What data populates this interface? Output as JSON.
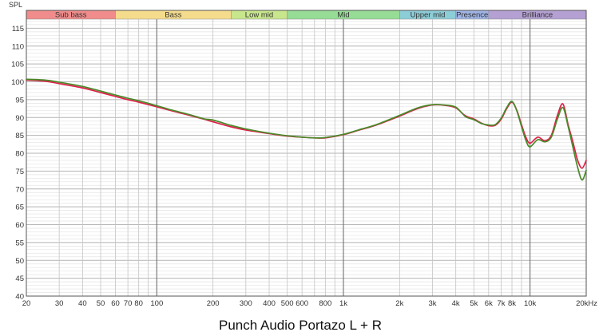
{
  "chart_data": {
    "type": "line",
    "title": "Punch Audio Portazo L + R",
    "ylabel": "SPL",
    "xscale": "log",
    "xlim": [
      20,
      20000
    ],
    "ylim": [
      40,
      120
    ],
    "grid": true,
    "x_tick_labels": [
      {
        "value": 20,
        "label": "20"
      },
      {
        "value": 30,
        "label": "30"
      },
      {
        "value": 40,
        "label": "40"
      },
      {
        "value": 50,
        "label": "50"
      },
      {
        "value": 60,
        "label": "60"
      },
      {
        "value": 70,
        "label": "70"
      },
      {
        "value": 80,
        "label": "80"
      },
      {
        "value": 100,
        "label": "100"
      },
      {
        "value": 200,
        "label": "200"
      },
      {
        "value": 300,
        "label": "300"
      },
      {
        "value": 400,
        "label": "400"
      },
      {
        "value": 500,
        "label": "500"
      },
      {
        "value": 600,
        "label": "600"
      },
      {
        "value": 800,
        "label": "800"
      },
      {
        "value": 1000,
        "label": "1k"
      },
      {
        "value": 2000,
        "label": "2k"
      },
      {
        "value": 3000,
        "label": "3k"
      },
      {
        "value": 4000,
        "label": "4k"
      },
      {
        "value": 5000,
        "label": "5k"
      },
      {
        "value": 6000,
        "label": "6k"
      },
      {
        "value": 7000,
        "label": "7k"
      },
      {
        "value": 8000,
        "label": "8k"
      },
      {
        "value": 10000,
        "label": "10k"
      },
      {
        "value": 20000,
        "label": "20kHz"
      }
    ],
    "y_ticks": [
      40,
      45,
      50,
      55,
      60,
      65,
      70,
      75,
      80,
      85,
      90,
      95,
      100,
      105,
      110,
      115
    ],
    "bands": [
      {
        "label": "Sub bass",
        "from": 20,
        "to": 60,
        "color": "#f08c8c"
      },
      {
        "label": "Bass",
        "from": 60,
        "to": 250,
        "color": "#f5dc8c"
      },
      {
        "label": "Low mid",
        "from": 250,
        "to": 500,
        "color": "#c8e68c"
      },
      {
        "label": "Mid",
        "from": 500,
        "to": 2000,
        "color": "#96dc96"
      },
      {
        "label": "Upper mid",
        "from": 2000,
        "to": 4000,
        "color": "#8ccdd7"
      },
      {
        "label": "Presence",
        "from": 4000,
        "to": 6000,
        "color": "#a0b4e6"
      },
      {
        "label": "Brilliance",
        "from": 6000,
        "to": 20000,
        "color": "#b4a0d2"
      }
    ],
    "series": [
      {
        "color": "#e0204a",
        "x": [
          20,
          25,
          30,
          40,
          50,
          60,
          70,
          80,
          100,
          120,
          150,
          180,
          200,
          250,
          300,
          400,
          500,
          600,
          700,
          800,
          1000,
          1200,
          1500,
          2000,
          2500,
          3000,
          3500,
          4000,
          4500,
          5000,
          5500,
          6000,
          6500,
          7000,
          7500,
          8000,
          8500,
          9000,
          9500,
          10000,
          11000,
          12000,
          13000,
          14000,
          15000,
          16000,
          17000,
          18000,
          19000,
          20000
        ],
        "y": [
          100.5,
          100.2,
          99.5,
          98.3,
          97.0,
          95.9,
          95.0,
          94.3,
          93.0,
          91.9,
          90.6,
          89.5,
          88.8,
          87.4,
          86.5,
          85.5,
          84.8,
          84.5,
          84.3,
          84.3,
          85.2,
          86.4,
          87.9,
          90.4,
          92.5,
          93.5,
          93.4,
          92.7,
          90.5,
          89.6,
          88.4,
          87.7,
          87.8,
          89.5,
          92.5,
          94.3,
          92.0,
          88.0,
          84.5,
          82.8,
          84.5,
          83.5,
          85.0,
          90.5,
          93.8,
          88.0,
          83.0,
          78.0,
          75.8,
          78.0
        ]
      },
      {
        "color": "#4a8a2a",
        "x": [
          20,
          25,
          30,
          40,
          50,
          60,
          70,
          80,
          100,
          120,
          150,
          180,
          200,
          250,
          300,
          400,
          500,
          600,
          700,
          800,
          1000,
          1200,
          1500,
          2000,
          2500,
          3000,
          3500,
          4000,
          4500,
          5000,
          5500,
          6000,
          6500,
          7000,
          7500,
          8000,
          8500,
          9000,
          9500,
          10000,
          11000,
          12000,
          13000,
          14000,
          15000,
          16000,
          17000,
          18000,
          19000,
          20000
        ],
        "y": [
          100.7,
          100.5,
          99.9,
          98.7,
          97.4,
          96.3,
          95.4,
          94.7,
          93.3,
          92.1,
          90.8,
          89.6,
          89.3,
          87.8,
          86.8,
          85.6,
          84.9,
          84.5,
          84.3,
          84.4,
          85.3,
          86.5,
          88.0,
          90.6,
          92.7,
          93.6,
          93.5,
          92.9,
          90.3,
          89.4,
          88.3,
          87.9,
          88.0,
          89.8,
          92.8,
          94.5,
          91.8,
          87.5,
          83.6,
          81.8,
          83.8,
          83.2,
          84.5,
          89.5,
          92.8,
          87.5,
          81.5,
          76.0,
          72.5,
          75.2
        ]
      }
    ]
  }
}
